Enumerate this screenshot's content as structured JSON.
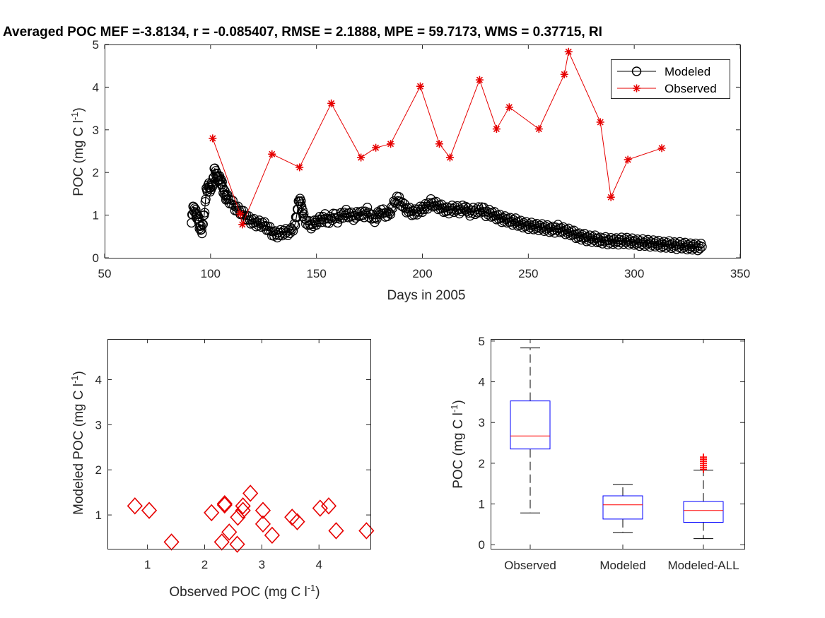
{
  "title": "Averaged POC    MEF =-3.8134, r = -0.085407, RMSE = 2.1888, MPE = 59.7173, WMS = 0.37715, RI",
  "chart_data": [
    {
      "type": "line",
      "xlabel": "Days in 2005",
      "ylabel": "POC (mg C l",
      "ylabel_sup": "-1",
      "ylabel_end": ")",
      "xlim": [
        50,
        350
      ],
      "ylim": [
        0,
        5
      ],
      "xticks": [
        50,
        100,
        150,
        200,
        250,
        300,
        350
      ],
      "yticks": [
        0,
        1,
        2,
        3,
        4,
        5
      ],
      "legend_position": "top-right",
      "series": [
        {
          "name": "Modeled",
          "color": "#000000",
          "marker": "circle",
          "x": [
            91,
            92,
            93,
            94,
            95,
            96,
            97,
            98,
            99,
            100,
            101,
            102,
            103,
            104,
            105,
            106,
            107,
            108,
            110,
            112,
            114,
            116,
            118,
            120,
            122,
            124,
            126,
            128,
            130,
            132,
            134,
            136,
            138,
            140,
            141,
            142,
            143,
            144,
            146,
            148,
            150,
            152,
            154,
            156,
            158,
            160,
            162,
            164,
            166,
            168,
            170,
            172,
            174,
            176,
            178,
            180,
            182,
            184,
            186,
            188,
            190,
            192,
            194,
            196,
            198,
            200,
            202,
            204,
            206,
            208,
            210,
            212,
            214,
            216,
            218,
            220,
            222,
            224,
            226,
            228,
            230,
            232,
            234,
            236,
            238,
            240,
            242,
            244,
            246,
            248,
            250,
            252,
            254,
            256,
            258,
            260,
            262,
            264,
            266,
            268,
            270,
            272,
            274,
            276,
            278,
            280,
            282,
            284,
            286,
            288,
            290,
            292,
            294,
            296,
            298,
            300,
            302,
            304,
            306,
            308,
            310,
            312,
            314,
            316,
            318,
            320,
            322,
            324,
            326,
            328,
            330,
            332
          ],
          "y": [
            0.9,
            1.2,
            1.05,
            0.95,
            0.7,
            0.65,
            1.0,
            1.55,
            1.7,
            1.6,
            1.75,
            2.1,
            1.9,
            1.85,
            1.8,
            1.6,
            1.45,
            1.4,
            1.3,
            1.15,
            1.1,
            1.0,
            0.9,
            0.85,
            0.8,
            0.8,
            0.75,
            0.65,
            0.55,
            0.55,
            0.6,
            0.6,
            0.62,
            0.8,
            1.1,
            1.4,
            1.2,
            0.95,
            0.8,
            0.75,
            0.85,
            0.9,
            0.95,
            0.85,
            1.0,
            0.9,
            1.0,
            1.05,
            1.0,
            0.95,
            1.05,
            1.0,
            1.1,
            0.95,
            0.9,
            1.1,
            1.05,
            1.0,
            1.2,
            1.4,
            1.3,
            1.15,
            1.1,
            1.05,
            1.1,
            1.15,
            1.2,
            1.3,
            1.25,
            1.2,
            1.15,
            1.1,
            1.15,
            1.15,
            1.1,
            1.2,
            1.05,
            1.1,
            1.1,
            1.15,
            1.05,
            1.05,
            1.0,
            0.95,
            0.9,
            0.9,
            0.85,
            0.85,
            0.8,
            0.78,
            0.75,
            0.75,
            0.72,
            0.72,
            0.7,
            0.68,
            0.65,
            0.7,
            0.65,
            0.62,
            0.6,
            0.55,
            0.5,
            0.5,
            0.45,
            0.45,
            0.45,
            0.4,
            0.42,
            0.38,
            0.4,
            0.38,
            0.4,
            0.4,
            0.38,
            0.38,
            0.35,
            0.36,
            0.35,
            0.33,
            0.34,
            0.32,
            0.3,
            0.32,
            0.3,
            0.28,
            0.3,
            0.28,
            0.26,
            0.27,
            0.25,
            0.26
          ]
        },
        {
          "name": "Observed",
          "color": "#e60000",
          "marker": "asterisk",
          "x": [
            101,
            114,
            115,
            129,
            142,
            157,
            171,
            178,
            185,
            199,
            208,
            213,
            227,
            235,
            241,
            255,
            267,
            269,
            284,
            289,
            297,
            313
          ],
          "y": [
            2.8,
            1.03,
            0.78,
            2.43,
            2.12,
            3.62,
            2.35,
            2.58,
            2.67,
            4.02,
            2.67,
            2.35,
            4.17,
            3.02,
            3.53,
            3.02,
            4.3,
            4.83,
            3.18,
            1.42,
            2.3,
            2.57
          ]
        }
      ]
    },
    {
      "type": "scatter",
      "xlabel": "Observed POC (mg C l",
      "xlabel_sup": "-1",
      "xlabel_end": ")",
      "ylabel": "Modeled POC (mg C l",
      "ylabel_sup": "-1",
      "ylabel_end": ")",
      "xlim": [
        0.3,
        4.9
      ],
      "ylim": [
        0.25,
        4.9
      ],
      "xticks": [
        1,
        2,
        3,
        4
      ],
      "yticks": [
        1,
        2,
        3,
        4
      ],
      "color": "#e60000",
      "marker": "diamond",
      "x": [
        0.78,
        1.03,
        1.42,
        2.12,
        2.3,
        2.35,
        2.35,
        2.43,
        2.57,
        2.58,
        2.67,
        2.67,
        2.8,
        3.02,
        3.02,
        3.18,
        3.53,
        3.62,
        4.02,
        4.17,
        4.3,
        4.83
      ],
      "y": [
        1.2,
        1.1,
        0.4,
        1.05,
        0.4,
        1.25,
        1.22,
        0.62,
        0.35,
        0.95,
        1.2,
        1.1,
        1.48,
        1.1,
        0.8,
        0.55,
        0.95,
        0.85,
        1.15,
        1.2,
        0.65,
        0.65
      ]
    },
    {
      "type": "box",
      "ylabel": "POC (mg C l",
      "ylabel_sup": "-1",
      "ylabel_end": ")",
      "ylim": [
        -0.1,
        5.05
      ],
      "yticks": [
        0,
        1,
        2,
        3,
        4,
        5
      ],
      "categories": [
        "Observed",
        "Modeled",
        "Modeled-ALL"
      ],
      "box_color": "#0000ff",
      "median_color": "#ff0000",
      "outlier_color": "#ff0000",
      "boxes": [
        {
          "min": 0.78,
          "q1": 2.35,
          "median": 2.67,
          "q3": 3.53,
          "max": 4.83,
          "outliers": []
        },
        {
          "min": 0.3,
          "q1": 0.63,
          "median": 0.98,
          "q3": 1.2,
          "max": 1.48,
          "outliers": []
        },
        {
          "min": 0.15,
          "q1": 0.55,
          "median": 0.84,
          "q3": 1.06,
          "max": 1.83,
          "outliers": [
            1.85,
            1.9,
            1.95,
            2.0,
            2.05,
            2.1,
            2.15
          ]
        }
      ]
    }
  ]
}
